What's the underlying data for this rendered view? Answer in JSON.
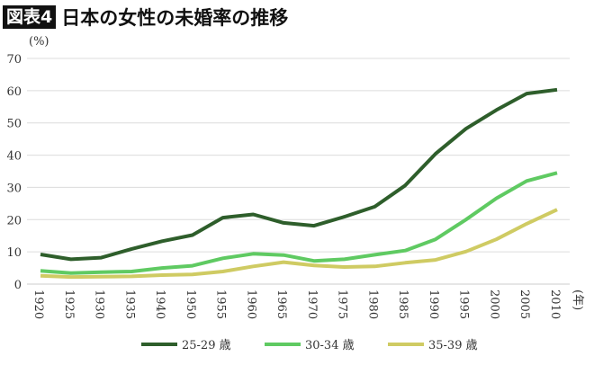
{
  "title": {
    "badge": "図表4",
    "text": "日本の女性の未婚率の推移"
  },
  "chart_data": {
    "type": "line",
    "title": "日本の女性の未婚率の推移",
    "ylabel": "(%)",
    "xlabel": "(年)",
    "ylim": [
      0,
      70
    ],
    "yticks": [
      0,
      10,
      20,
      30,
      40,
      50,
      60,
      70
    ],
    "grid": true,
    "legend_position": "bottom",
    "categories": [
      "1920",
      "1925",
      "1930",
      "1935",
      "1940",
      "1950",
      "1955",
      "1960",
      "1965",
      "1970",
      "1975",
      "1980",
      "1985",
      "1990",
      "1995",
      "2000",
      "2005",
      "2010"
    ],
    "series": [
      {
        "name": "25-29 歳",
        "color": "#2e5e2b",
        "values": [
          9.2,
          7.7,
          8.2,
          10.9,
          13.3,
          15.2,
          20.6,
          21.6,
          19.0,
          18.1,
          20.9,
          24.0,
          30.6,
          40.4,
          48.2,
          54.0,
          59.1,
          60.3
        ]
      },
      {
        "name": "30-34 歳",
        "color": "#5fca62",
        "values": [
          4.1,
          3.4,
          3.7,
          3.9,
          5.0,
          5.7,
          8.0,
          9.4,
          9.0,
          7.2,
          7.7,
          9.1,
          10.4,
          13.9,
          20.0,
          26.6,
          32.0,
          34.5
        ]
      },
      {
        "name": "35-39 歳",
        "color": "#cfcb63",
        "values": [
          2.6,
          2.2,
          2.3,
          2.4,
          2.8,
          3.0,
          3.9,
          5.5,
          6.8,
          5.8,
          5.3,
          5.5,
          6.6,
          7.5,
          10.1,
          13.9,
          18.7,
          23.1
        ]
      }
    ]
  }
}
